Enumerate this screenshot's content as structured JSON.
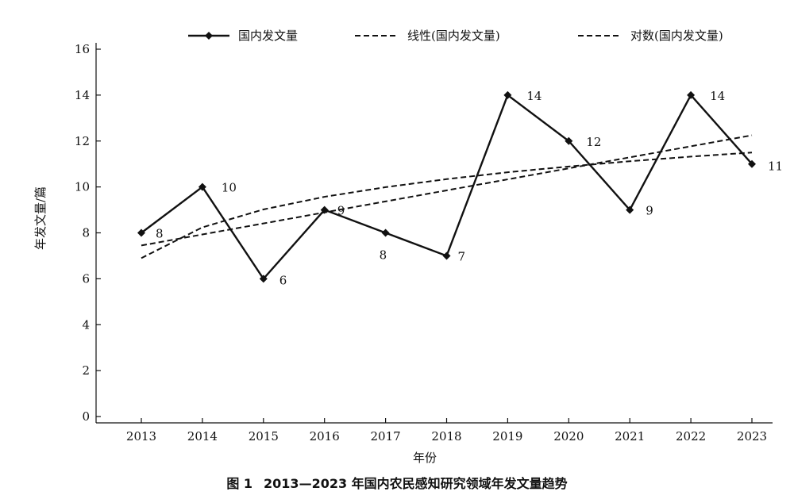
{
  "chart_data": {
    "type": "line",
    "categories": [
      "2013",
      "2014",
      "2015",
      "2016",
      "2017",
      "2018",
      "2019",
      "2020",
      "2021",
      "2022",
      "2023"
    ],
    "series": [
      {
        "name": "国内发文量",
        "values": [
          8,
          10,
          6,
          9,
          8,
          7,
          14,
          12,
          9,
          14,
          11
        ],
        "style": "solid-diamond",
        "data_labels": [
          "8",
          "10",
          "6",
          "9",
          "8",
          "7",
          "14",
          "12",
          "9",
          "14",
          "11"
        ]
      },
      {
        "name": "线性(国内发文量)",
        "values": [
          7.45,
          7.93,
          8.41,
          8.89,
          9.37,
          9.85,
          10.33,
          10.81,
          11.29,
          11.77,
          12.25
        ],
        "style": "dashed"
      },
      {
        "name": "对数(国内发文量)",
        "values": [
          6.9,
          8.24,
          9.02,
          9.57,
          9.99,
          10.34,
          10.64,
          10.89,
          11.12,
          11.32,
          11.5
        ],
        "style": "dashed"
      }
    ],
    "title": "",
    "xlabel": "年份",
    "ylabel": "年发文量/篇",
    "ylim": [
      0,
      16
    ],
    "yticks": [
      0,
      2,
      4,
      6,
      8,
      10,
      12,
      14,
      16
    ],
    "grid": false,
    "legend_position": "top"
  },
  "caption": {
    "figure_label": "图 1",
    "text": "2013—2023 年国内农民感知研究领域年发文量趋势"
  },
  "colors": {
    "line": "#111111",
    "background": "#ffffff"
  }
}
